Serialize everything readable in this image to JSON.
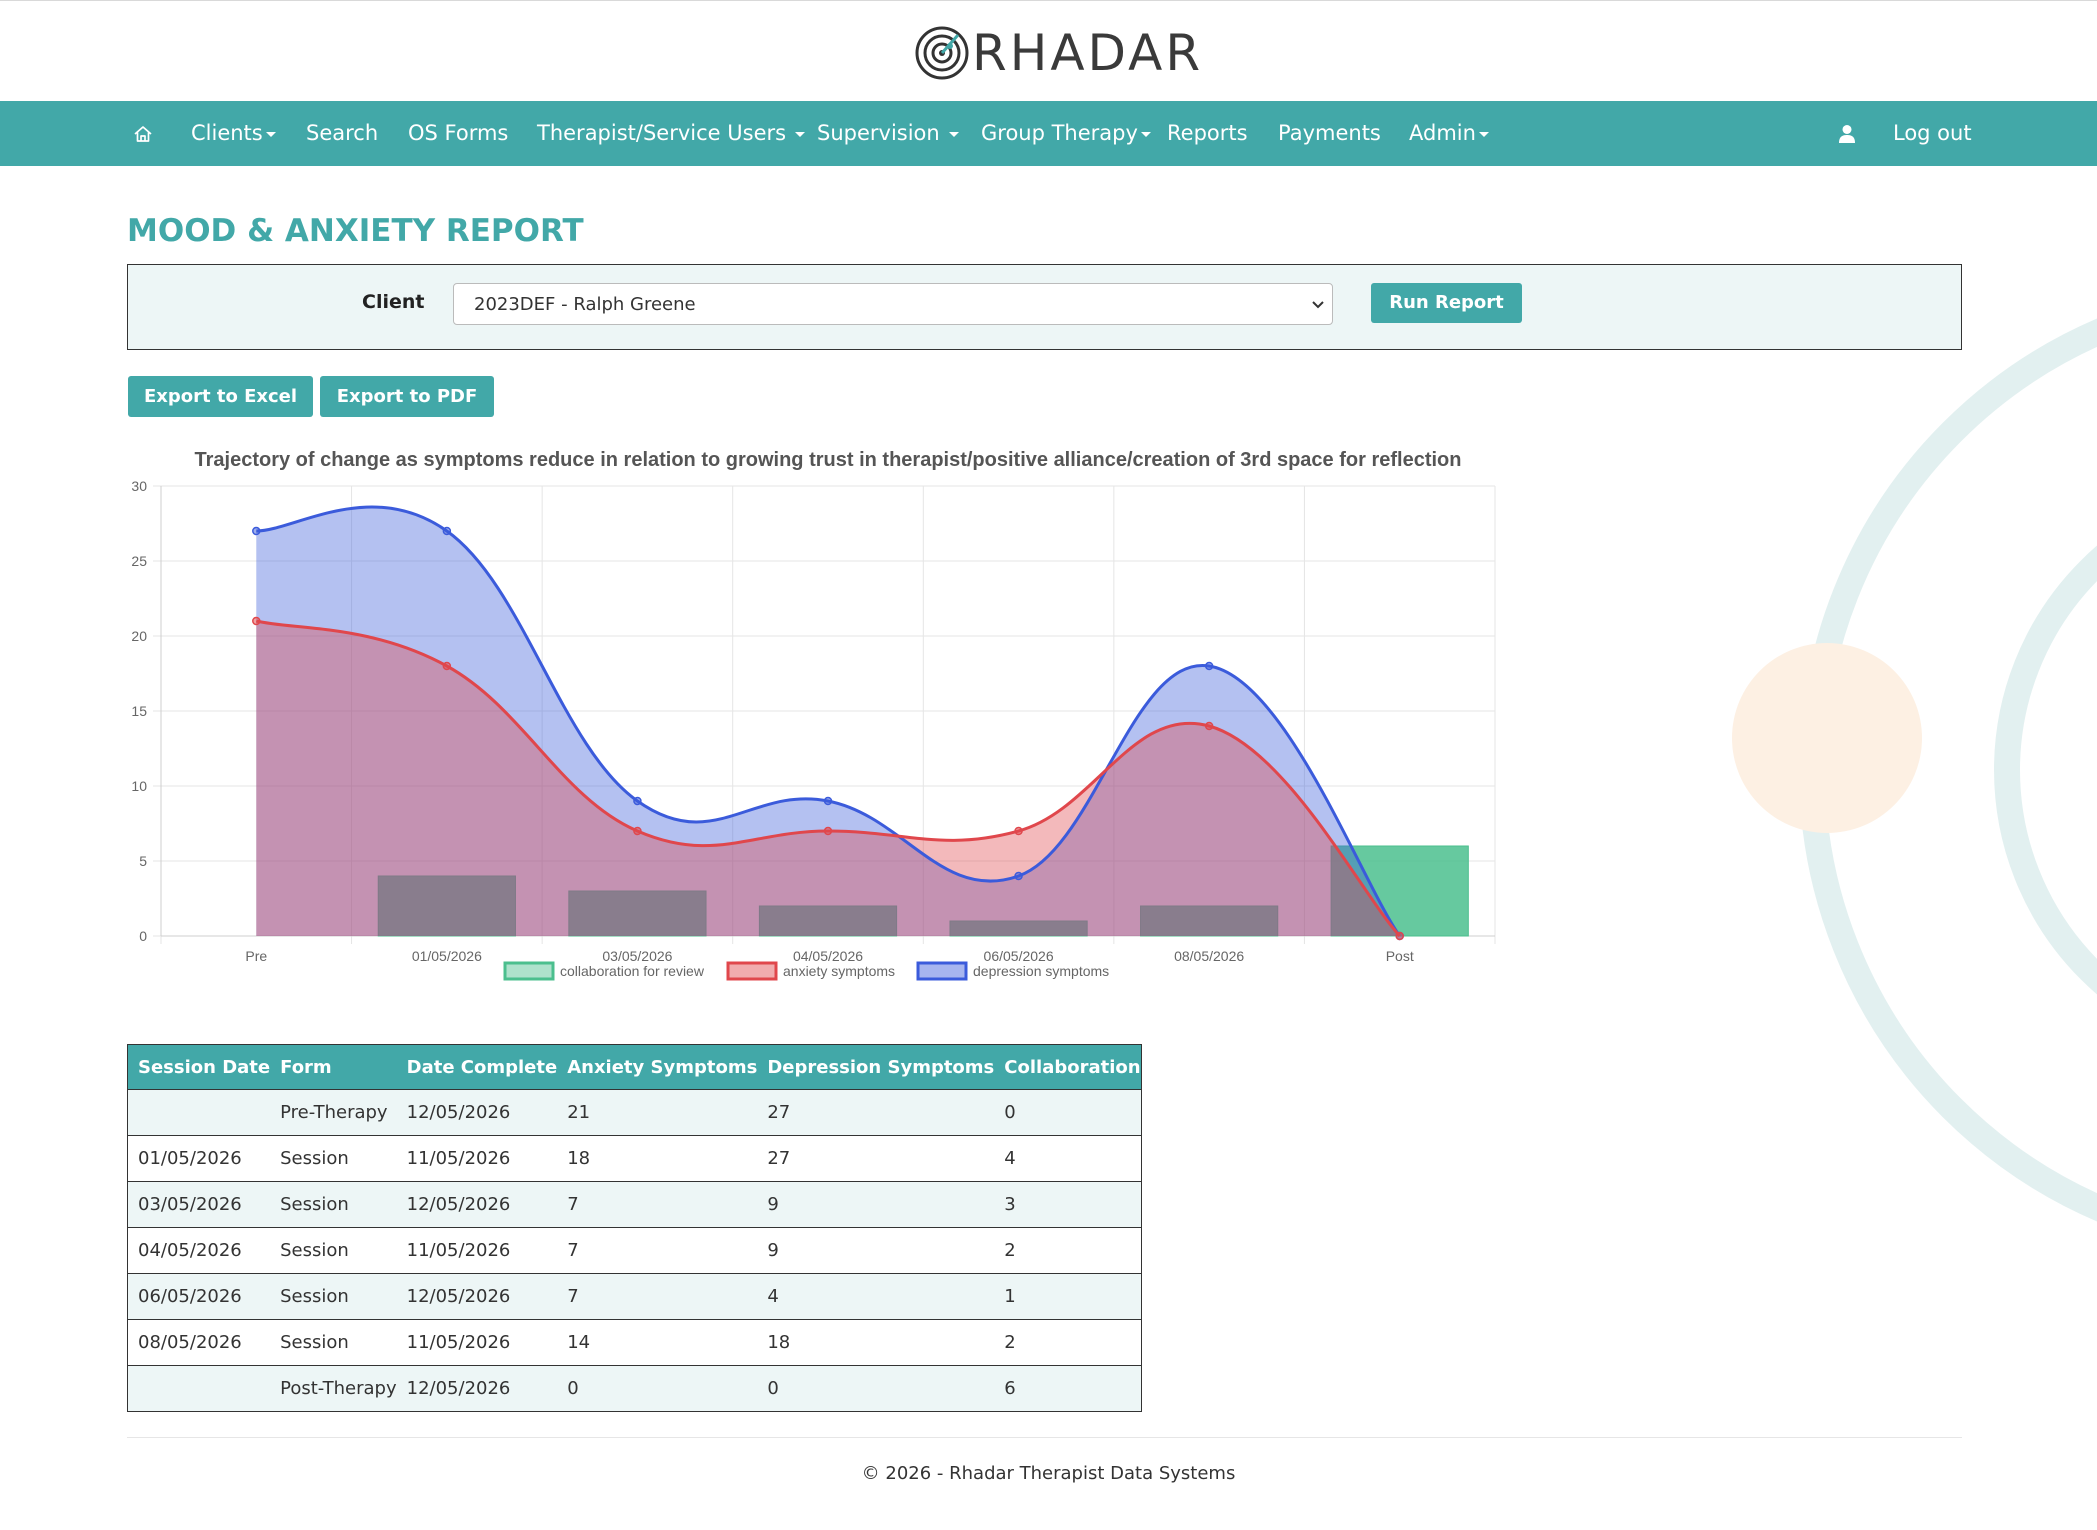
{
  "brand": {
    "logo_text": "RHADAR"
  },
  "nav": {
    "home_icon": "home-icon",
    "items": [
      "Clients",
      "Search",
      "OS Forms",
      "Therapist/Service Users",
      "Supervision",
      "Group Therapy",
      "Reports",
      "Payments",
      "Admin"
    ],
    "user_icon": "user-icon",
    "logout": "Log out"
  },
  "page": {
    "title": "MOOD & ANXIETY REPORT"
  },
  "filter": {
    "client_label": "Client",
    "client_value": "2023DEF - Ralph Greene",
    "run_button": "Run Report"
  },
  "exports": {
    "excel": "Export to Excel",
    "pdf": "Export to PDF"
  },
  "chart_data": {
    "type": "line",
    "title": "Trajectory of change as symptoms reduce in relation to growing trust in therapist/positive alliance/creation of 3rd space for reflection",
    "categories": [
      "Pre",
      "01/05/2026",
      "03/05/2026",
      "04/05/2026",
      "06/05/2026",
      "08/05/2026",
      "Post"
    ],
    "ylim": [
      0,
      30
    ],
    "yticks": [
      0,
      5,
      10,
      15,
      20,
      25,
      30
    ],
    "grid": true,
    "legend_position": "bottom",
    "series": [
      {
        "name": "collaboration for review",
        "type": "bar",
        "values": [
          0,
          4,
          3,
          2,
          1,
          2,
          6
        ],
        "color": "#4bbf8e"
      },
      {
        "name": "anxiety symptoms",
        "type": "area",
        "values": [
          21,
          18,
          7,
          7,
          7,
          14,
          0
        ],
        "color": "#e0474c"
      },
      {
        "name": "depression symptoms",
        "type": "area",
        "values": [
          27,
          27,
          9,
          9,
          4,
          18,
          0
        ],
        "color": "#3b5bdb"
      }
    ]
  },
  "table": {
    "headers": [
      "Session Date",
      "Form",
      "Date Complete",
      "Anxiety Symptoms",
      "Depression Symptoms",
      "Collaboration"
    ],
    "rows": [
      [
        "",
        "Pre-Therapy",
        "12/05/2026",
        "21",
        "27",
        "0"
      ],
      [
        "01/05/2026",
        "Session",
        "11/05/2026",
        "18",
        "27",
        "4"
      ],
      [
        "03/05/2026",
        "Session",
        "12/05/2026",
        "7",
        "9",
        "3"
      ],
      [
        "04/05/2026",
        "Session",
        "11/05/2026",
        "7",
        "9",
        "2"
      ],
      [
        "06/05/2026",
        "Session",
        "12/05/2026",
        "7",
        "4",
        "1"
      ],
      [
        "08/05/2026",
        "Session",
        "11/05/2026",
        "14",
        "18",
        "2"
      ],
      [
        "",
        "Post-Therapy",
        "12/05/2026",
        "0",
        "0",
        "6"
      ]
    ]
  },
  "footer": {
    "text": "© 2026 - Rhadar Therapist Data Systems"
  }
}
